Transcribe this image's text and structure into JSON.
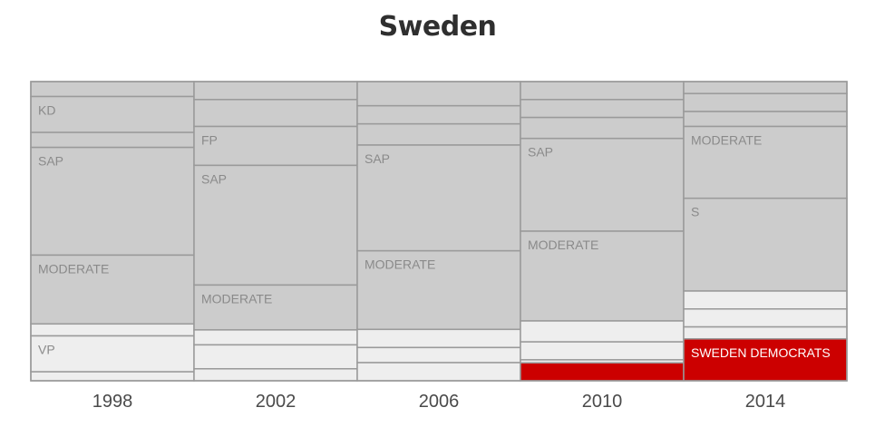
{
  "chart_data": {
    "type": "stacked-bar",
    "title": "Sweden",
    "categories": [
      "1998",
      "2002",
      "2006",
      "2010",
      "2014"
    ],
    "colors": {
      "major": "#cccccc",
      "minor": "#eeeeee",
      "highlight": "#cc0000",
      "border": "#9a9a9a"
    },
    "columns": [
      {
        "year": "1998",
        "segments": [
          {
            "label": "",
            "value": 5,
            "kind": "major"
          },
          {
            "label": "KD",
            "value": 12,
            "kind": "major"
          },
          {
            "label": "",
            "value": 5,
            "kind": "major"
          },
          {
            "label": "SAP",
            "value": 36,
            "kind": "major"
          },
          {
            "label": "MODERATE",
            "value": 23,
            "kind": "major"
          },
          {
            "label": "",
            "value": 4,
            "kind": "minor"
          },
          {
            "label": "VP",
            "value": 12,
            "kind": "minor"
          },
          {
            "label": "",
            "value": 3,
            "kind": "minor"
          }
        ]
      },
      {
        "year": "2002",
        "segments": [
          {
            "label": "",
            "value": 6,
            "kind": "major"
          },
          {
            "label": "",
            "value": 9,
            "kind": "major"
          },
          {
            "label": "FP",
            "value": 13,
            "kind": "major"
          },
          {
            "label": "SAP",
            "value": 40,
            "kind": "major"
          },
          {
            "label": "MODERATE",
            "value": 15,
            "kind": "major"
          },
          {
            "label": "",
            "value": 5,
            "kind": "minor"
          },
          {
            "label": "",
            "value": 8,
            "kind": "minor"
          },
          {
            "label": "",
            "value": 4,
            "kind": "minor"
          }
        ]
      },
      {
        "year": "2006",
        "segments": [
          {
            "label": "",
            "value": 8,
            "kind": "major"
          },
          {
            "label": "",
            "value": 6,
            "kind": "major"
          },
          {
            "label": "",
            "value": 7,
            "kind": "major"
          },
          {
            "label": "SAP",
            "value": 35,
            "kind": "major"
          },
          {
            "label": "MODERATE",
            "value": 26,
            "kind": "major"
          },
          {
            "label": "",
            "value": 6,
            "kind": "minor"
          },
          {
            "label": "",
            "value": 5,
            "kind": "minor"
          },
          {
            "label": "",
            "value": 6,
            "kind": "minor"
          }
        ]
      },
      {
        "year": "2010",
        "segments": [
          {
            "label": "",
            "value": 6,
            "kind": "major"
          },
          {
            "label": "",
            "value": 6,
            "kind": "major"
          },
          {
            "label": "",
            "value": 7,
            "kind": "major"
          },
          {
            "label": "SAP",
            "value": 31,
            "kind": "major"
          },
          {
            "label": "MODERATE",
            "value": 30,
            "kind": "major"
          },
          {
            "label": "",
            "value": 7,
            "kind": "minor"
          },
          {
            "label": "",
            "value": 6,
            "kind": "minor"
          },
          {
            "label": "",
            "value": 1,
            "kind": "minor"
          },
          {
            "label": "",
            "value": 6,
            "kind": "highlight"
          }
        ]
      },
      {
        "year": "2014",
        "segments": [
          {
            "label": "",
            "value": 4,
            "kind": "major"
          },
          {
            "label": "",
            "value": 6,
            "kind": "major"
          },
          {
            "label": "",
            "value": 5,
            "kind": "major"
          },
          {
            "label": "MODERATE",
            "value": 24,
            "kind": "major"
          },
          {
            "label": "S",
            "value": 31,
            "kind": "major"
          },
          {
            "label": "",
            "value": 6,
            "kind": "minor"
          },
          {
            "label": "",
            "value": 6,
            "kind": "minor"
          },
          {
            "label": "",
            "value": 4,
            "kind": "minor"
          },
          {
            "label": "SWEDEN DEMOCRATS",
            "value": 14,
            "kind": "highlight"
          }
        ]
      }
    ]
  }
}
